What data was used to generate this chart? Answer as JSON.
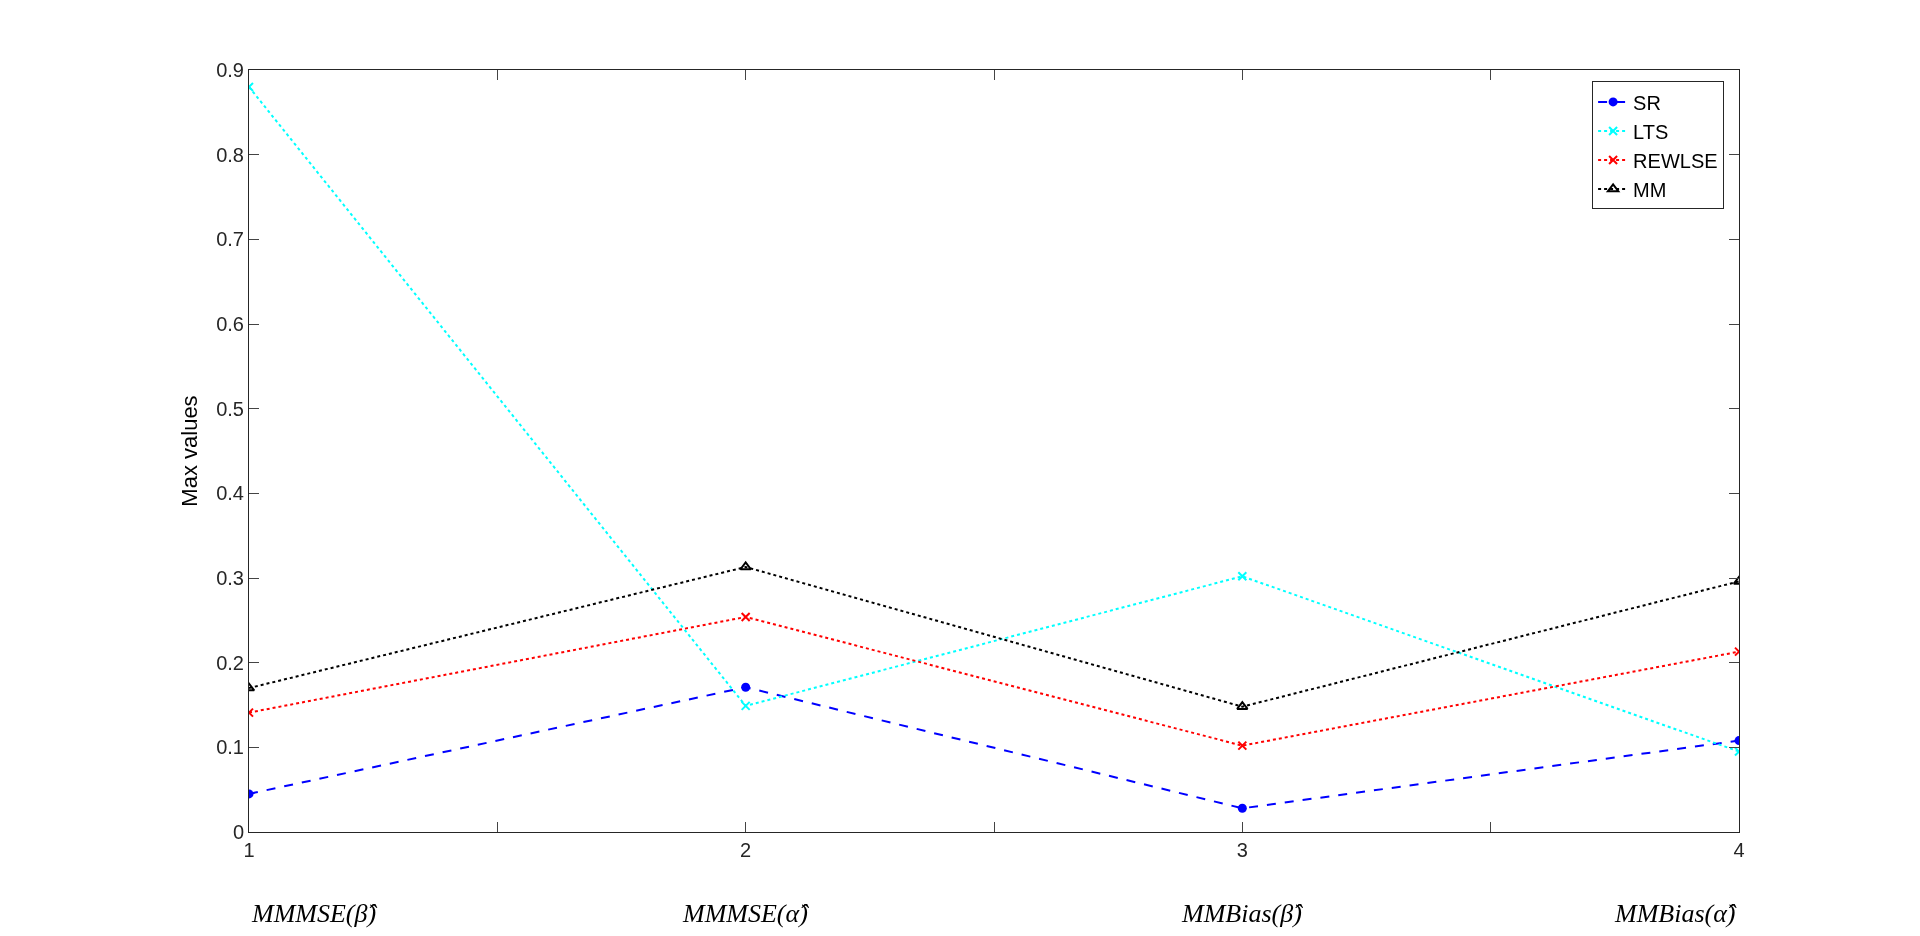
{
  "chart_data": {
    "type": "line",
    "ylabel": "Max values",
    "x": [
      1,
      2,
      3,
      4
    ],
    "series": [
      {
        "name": "SR",
        "color": "#0000ff",
        "values": [
          0.045,
          0.171,
          0.028,
          0.108
        ],
        "marker": "circle",
        "line_style": "dashed"
      },
      {
        "name": "LTS",
        "color": "#00ffff",
        "values": [
          0.88,
          0.149,
          0.302,
          0.095
        ],
        "marker": "cross",
        "line_style": "dotted"
      },
      {
        "name": "REWLSE",
        "color": "#ff0000",
        "values": [
          0.141,
          0.254,
          0.102,
          0.213
        ],
        "marker": "cross",
        "line_style": "dotted"
      },
      {
        "name": "MM",
        "color": "#000000",
        "values": [
          0.17,
          0.313,
          0.148,
          0.296
        ],
        "marker": "triangle",
        "line_style": "dotted"
      }
    ],
    "xlim": [
      1,
      4
    ],
    "xticks": [
      1,
      {
        "value": 1.5,
        "label": null
      },
      2,
      {
        "value": 2.5,
        "label": null
      },
      3,
      {
        "value": 3.5,
        "label": null
      },
      4
    ],
    "ylim": [
      0,
      0.9
    ],
    "yticks": [
      0,
      0.1,
      0.2,
      0.3,
      0.4,
      0.5,
      0.6,
      0.7,
      0.8,
      0.9
    ],
    "annotations": [
      "MMMSE(β̂)",
      "MMMSE(α̂)",
      "MMBias(β̂)",
      "MMBias(α̂)"
    ],
    "grid": false,
    "legend": "top right"
  }
}
